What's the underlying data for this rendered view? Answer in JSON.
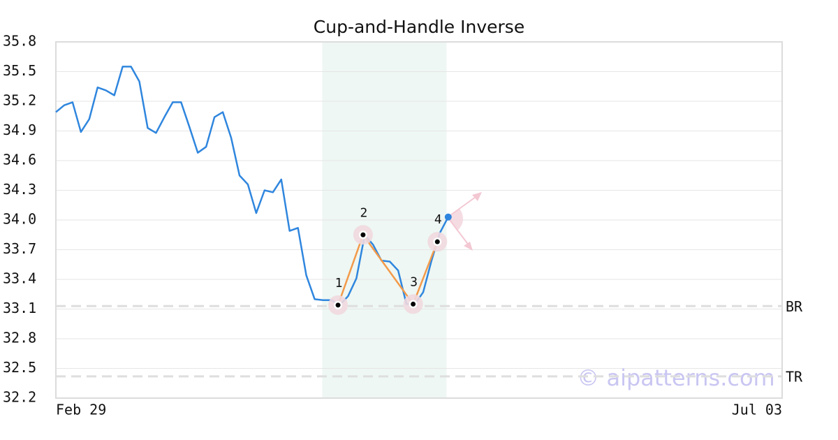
{
  "chart_data": {
    "type": "line",
    "title": "Cup-and-Handle Inverse",
    "categories": [
      "Feb 29",
      null,
      null,
      null,
      null,
      null,
      null,
      null,
      null,
      null,
      null,
      null,
      null,
      null,
      null,
      null,
      null,
      null,
      null,
      null,
      null,
      null,
      null,
      null,
      null,
      null,
      null,
      null,
      null,
      null,
      null,
      null,
      null,
      null,
      null,
      null,
      null,
      null,
      null,
      null,
      null,
      null,
      null,
      null,
      null,
      null,
      null,
      null,
      null,
      null,
      null,
      null,
      null,
      null,
      null,
      null,
      null,
      null,
      null,
      null,
      null,
      null,
      null,
      null,
      null,
      null,
      null,
      null,
      null,
      null,
      null,
      null,
      null,
      null,
      null,
      null,
      null,
      null,
      null,
      null,
      null,
      null,
      null,
      null,
      null,
      null,
      null,
      "Jul 03"
    ],
    "values": [
      35.09,
      35.16,
      35.19,
      34.89,
      35.02,
      35.34,
      35.31,
      35.26,
      35.55,
      35.55,
      35.4,
      34.93,
      34.88,
      35.04,
      35.19,
      35.19,
      34.94,
      34.68,
      34.74,
      35.04,
      35.09,
      34.83,
      34.45,
      34.36,
      34.07,
      34.3,
      34.28,
      34.41,
      33.89,
      33.92,
      33.44,
      33.2,
      33.19,
      33.19,
      33.14,
      33.23,
      33.41,
      33.85,
      33.75,
      33.59,
      33.58,
      33.49,
      33.15,
      33.15,
      33.27,
      33.59,
      33.87,
      34.03,
      null,
      null,
      null,
      null,
      null,
      null,
      null,
      null,
      null,
      null,
      null,
      null,
      null,
      null,
      null,
      null,
      null,
      null,
      null,
      null,
      null,
      null,
      null,
      null,
      null,
      null,
      null,
      null,
      null,
      null,
      null,
      null,
      null,
      null,
      null,
      null,
      null,
      null,
      null,
      null
    ],
    "color": "#2f86de",
    "ylim": [
      32.2,
      35.8
    ],
    "yticks": [
      32.2,
      32.5,
      32.8,
      33.1,
      33.4,
      33.7,
      {
        "value": 34,
        "label": "34.0"
      },
      34.3,
      34.6,
      34.9,
      35.2,
      35.5,
      35.8
    ],
    "grid": true,
    "highlight": {
      "start": 31.9,
      "end": 46.8,
      "color": "#eef7f3"
    },
    "pattern_points": [
      {
        "label": "1",
        "x": 33.8,
        "value": 33.14
      },
      {
        "label": "2",
        "x": 36.8,
        "value": 33.85
      },
      {
        "label": "3",
        "x": 42.8,
        "value": 33.15
      },
      {
        "label": "4",
        "x": 45.7,
        "value": 33.78
      }
    ],
    "pattern_color": "#f39a4a",
    "ref_lines": [
      {
        "label": "BR",
        "value": 33.13
      },
      {
        "label": "TR",
        "value": 32.42
      }
    ],
    "watermark": "© aipatterns.com"
  }
}
